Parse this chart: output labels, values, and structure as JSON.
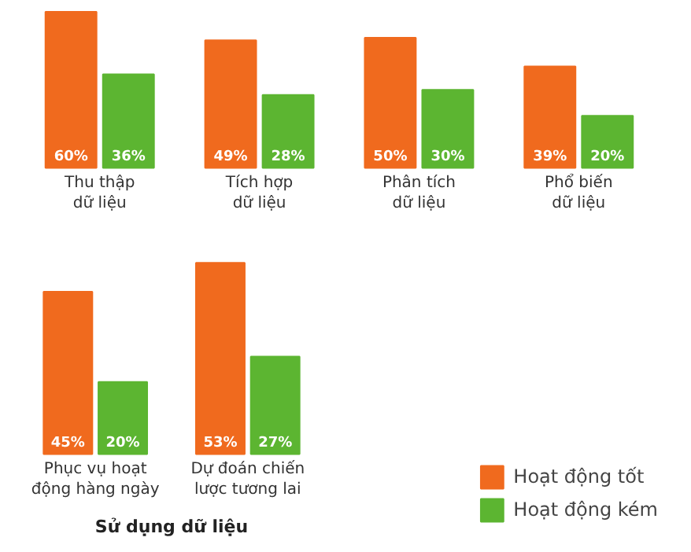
{
  "chart_data": [
    {
      "type": "bar",
      "categories": [
        "Thu thập dữ liệu",
        "Tích hợp dữ liệu",
        "Phân tích dữ liệu",
        "Phổ biến dữ liệu"
      ],
      "series": [
        {
          "color": "#f06a1e",
          "values": [
            60,
            49,
            50,
            39
          ],
          "value_labels": [
            "60%",
            "49%",
            "50%",
            "39%"
          ]
        },
        {
          "color": "#5cb531",
          "values": [
            36,
            28,
            30,
            20
          ],
          "value_labels": [
            "36%",
            "28%",
            "30%",
            "20%"
          ]
        }
      ],
      "grid": false,
      "tick_labels": "x"
    },
    {
      "type": "bar",
      "categories": [
        "Phục vụ hoạt động hàng ngày",
        "Dự đoán chiến lược tương lai"
      ],
      "xlabel": "Sử dụng dữ liệu",
      "series": [
        {
          "name": "Hoạt động tốt",
          "color": "#f06a1e",
          "values": [
            45,
            53
          ],
          "value_labels": [
            "45%",
            "53%"
          ]
        },
        {
          "name": "Hoạt động kém",
          "color": "#5cb531",
          "values": [
            20,
            27
          ],
          "value_labels": [
            "20%",
            "27%"
          ]
        }
      ],
      "grid": false,
      "tick_labels": "x",
      "legend": "bottom right"
    }
  ]
}
